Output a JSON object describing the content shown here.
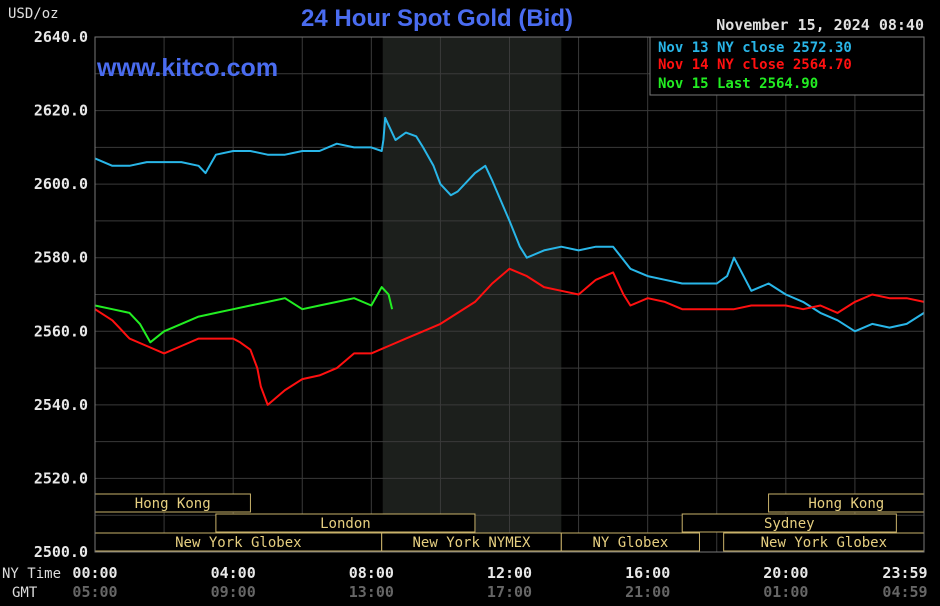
{
  "chart_data": {
    "type": "line",
    "title": "24 Hour Spot Gold (Bid)",
    "unit": "USD/oz",
    "watermark": "www.kitco.com",
    "timestamp": "November 15, 2024 08:40",
    "ylim": [
      2500,
      2640
    ],
    "y_ticks": [
      "2640.0",
      "2620.0",
      "2600.0",
      "2580.0",
      "2560.0",
      "2540.0",
      "2520.0",
      "2500.0"
    ],
    "y_tick_values": [
      2640,
      2620,
      2600,
      2580,
      2560,
      2540,
      2520,
      2500
    ],
    "xlim_hours": [
      0,
      24
    ],
    "x_tick_hours": [
      0,
      4,
      8,
      12,
      16,
      20,
      24
    ],
    "x_row_label_ny": "NY Time",
    "x_row_label_gmt": "GMT",
    "x_ticks_ny": [
      "00:00",
      "04:00",
      "08:00",
      "12:00",
      "16:00",
      "20:00",
      "23:59"
    ],
    "x_ticks_gmt": [
      "05:00",
      "09:00",
      "13:00",
      "17:00",
      "21:00",
      "01:00",
      "04:59"
    ],
    "shaded_hours": [
      8.33,
      13.5
    ],
    "grid": true,
    "legend_position": "top-right",
    "legend": [
      {
        "label": "Nov 13 NY close 2572.30",
        "color": "#29b6e8"
      },
      {
        "label": "Nov 14 NY close 2564.70",
        "color": "#ff1010"
      },
      {
        "label": "Nov 15 Last 2564.90",
        "color": "#22ee22"
      }
    ],
    "sessions": [
      {
        "label": "Hong Kong",
        "start": 0,
        "end": 4.5,
        "row": 0
      },
      {
        "label": "Hong Kong",
        "start": 19.5,
        "end": 24,
        "row": 0
      },
      {
        "label": "London",
        "start": 3.5,
        "end": 11,
        "row": 1
      },
      {
        "label": "Sydney",
        "start": 17,
        "end": 23.2,
        "row": 1
      },
      {
        "label": "New York Globex",
        "start": 0,
        "end": 8.3,
        "row": 2
      },
      {
        "label": "New York NYMEX",
        "start": 8.3,
        "end": 13.5,
        "row": 2
      },
      {
        "label": "NY Globex",
        "start": 13.5,
        "end": 17.5,
        "row": 2
      },
      {
        "label": "New York Globex",
        "start": 18.2,
        "end": 24,
        "row": 2
      }
    ],
    "series": [
      {
        "name": "Nov 13",
        "color": "#29b6e8",
        "x": [
          0,
          0.5,
          1,
          1.5,
          2,
          2.5,
          3,
          3.2,
          3.5,
          4,
          4.5,
          5,
          5.5,
          6,
          6.5,
          7,
          7.5,
          8,
          8.3,
          8.35,
          8.4,
          8.7,
          9,
          9.3,
          9.5,
          9.8,
          10,
          10.3,
          10.5,
          11,
          11.3,
          11.5,
          12,
          12.3,
          12.5,
          13,
          13.5,
          14,
          14.5,
          15,
          15.5,
          16,
          16.5,
          17,
          17.5,
          18,
          18.3,
          18.5,
          19,
          19.5,
          20,
          20.5,
          21,
          21.5,
          22,
          22.5,
          23,
          23.5,
          24
        ],
        "values": [
          2607,
          2605,
          2605,
          2606,
          2606,
          2606,
          2605,
          2603,
          2608,
          2609,
          2609,
          2608,
          2608,
          2609,
          2609,
          2611,
          2610,
          2610,
          2609,
          2612,
          2618,
          2612,
          2614,
          2613,
          2610,
          2605,
          2600,
          2597,
          2598,
          2603,
          2605,
          2601,
          2590,
          2583,
          2580,
          2582,
          2583,
          2582,
          2583,
          2583,
          2577,
          2575,
          2574,
          2573,
          2573,
          2573,
          2575,
          2580,
          2571,
          2573,
          2570,
          2568,
          2565,
          2563,
          2560,
          2562,
          2561,
          2562,
          2565
        ]
      },
      {
        "name": "Nov 14",
        "color": "#ff1010",
        "x": [
          0,
          0.5,
          0.7,
          1,
          1.5,
          2,
          2.5,
          3,
          3.5,
          4,
          4.2,
          4.5,
          4.7,
          4.8,
          5,
          5.5,
          6,
          6.5,
          7,
          7.5,
          8,
          8.5,
          9,
          9.5,
          10,
          10.5,
          11,
          11.5,
          12,
          12.5,
          13,
          13.5,
          14,
          14.5,
          15,
          15.3,
          15.5,
          16,
          16.5,
          17,
          17.5,
          18,
          18.5,
          19,
          19.5,
          20,
          20.5,
          21,
          21.5,
          22,
          22.5,
          23,
          23.5,
          24
        ],
        "values": [
          2566,
          2563,
          2561,
          2558,
          2556,
          2554,
          2556,
          2558,
          2558,
          2558,
          2557,
          2555,
          2550,
          2545,
          2540,
          2544,
          2547,
          2548,
          2550,
          2554,
          2554,
          2556,
          2558,
          2560,
          2562,
          2565,
          2568,
          2573,
          2577,
          2575,
          2572,
          2571,
          2570,
          2574,
          2576,
          2570,
          2567,
          2569,
          2568,
          2566,
          2566,
          2566,
          2566,
          2567,
          2567,
          2567,
          2566,
          2567,
          2565,
          2568,
          2570,
          2569,
          2569,
          2568
        ]
      },
      {
        "name": "Nov 15",
        "color": "#22ee22",
        "x": [
          0,
          0.5,
          1,
          1.3,
          1.6,
          2,
          2.5,
          3,
          3.5,
          4,
          4.5,
          5,
          5.5,
          6,
          6.5,
          7,
          7.5,
          8,
          8.3,
          8.5,
          8.6
        ],
        "values": [
          2567,
          2566,
          2565,
          2562,
          2557,
          2560,
          2562,
          2564,
          2565,
          2566,
          2567,
          2568,
          2569,
          2566,
          2567,
          2568,
          2569,
          2567,
          2572,
          2570,
          2566
        ]
      }
    ]
  }
}
